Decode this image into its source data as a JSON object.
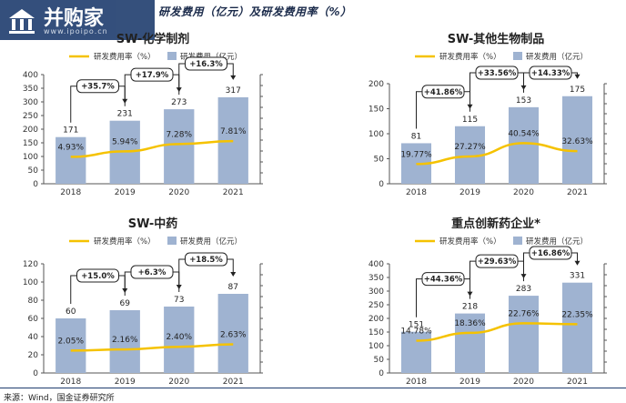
{
  "page": {
    "figure_title": "研发费用（亿元）及研发费用率（%）",
    "source": "来源：Wind，国金证券研究所",
    "watermark_name": "并购家",
    "watermark_url": "www.ipoipo.cn"
  },
  "colors": {
    "bar": "#9fb3d1",
    "bar_edge": "#7f95b8",
    "line": "#f5c200",
    "axis": "#555555"
  },
  "chart_data": [
    {
      "type": "bar",
      "title": "SW-化学制剂",
      "categories": [
        "2018",
        "2019",
        "2020",
        "2021"
      ],
      "series": [
        {
          "name": "研发费用（亿元）",
          "kind": "bar",
          "values": [
            171,
            231,
            273,
            317
          ],
          "labels": [
            "171",
            "231",
            "273",
            "317"
          ]
        },
        {
          "name": "研发费用率（%）",
          "kind": "line",
          "values": [
            4.93,
            5.94,
            7.28,
            7.81
          ],
          "labels": [
            "4.93%",
            "5.94%",
            "7.28%",
            "7.81%"
          ]
        }
      ],
      "growth": [
        "+35.7%",
        "+17.9%",
        "+16.3%"
      ],
      "ylim": [
        0,
        400
      ],
      "yticks": [
        "0",
        "50",
        "100",
        "150",
        "200",
        "250",
        "300",
        "350",
        "400"
      ],
      "y2lim": [
        0,
        20
      ]
    },
    {
      "type": "bar",
      "title": "SW-其他生物制品",
      "categories": [
        "2018",
        "2019",
        "2020",
        "2021"
      ],
      "series": [
        {
          "name": "研发费用（亿元）",
          "kind": "bar",
          "values": [
            81,
            115,
            153,
            175
          ],
          "labels": [
            "81",
            "115",
            "153",
            "175"
          ]
        },
        {
          "name": "研发费用率（%）",
          "kind": "line",
          "values": [
            19.77,
            27.27,
            40.54,
            32.63
          ],
          "labels": [
            "19.77%",
            "27.27%",
            "40.54%",
            "32.63%"
          ]
        }
      ],
      "growth": [
        "+41.86%",
        "+33.56%",
        "+14.33%"
      ],
      "ylim": [
        0,
        200
      ],
      "yticks": [
        "0",
        "50",
        "100",
        "150",
        "200"
      ],
      "y2lim": [
        0,
        100
      ]
    },
    {
      "type": "bar",
      "title": "SW-中药",
      "categories": [
        "2018",
        "2019",
        "2020",
        "2021"
      ],
      "series": [
        {
          "name": "研发费用（亿元）",
          "kind": "bar",
          "values": [
            60,
            69,
            73,
            87
          ],
          "labels": [
            "60",
            "69",
            "73",
            "87"
          ]
        },
        {
          "name": "研发费用率（%）",
          "kind": "line",
          "values": [
            2.05,
            2.16,
            2.4,
            2.63
          ],
          "labels": [
            "2.05%",
            "2.16%",
            "2.40%",
            "2.63%"
          ]
        }
      ],
      "growth": [
        "+15.0%",
        "+6.3%",
        "+18.5%"
      ],
      "ylim": [
        0,
        120
      ],
      "yticks": [
        "0",
        "20",
        "40",
        "60",
        "80",
        "100",
        "120"
      ],
      "y2lim": [
        0,
        10
      ]
    },
    {
      "type": "bar",
      "title": "重点创新药企业*",
      "categories": [
        "2018",
        "2019",
        "2020",
        "2021"
      ],
      "series": [
        {
          "name": "研发费用（亿元）",
          "kind": "bar",
          "values": [
            151,
            218,
            283,
            331
          ],
          "labels": [
            "151",
            "218",
            "283",
            "331"
          ]
        },
        {
          "name": "研发费用率（%）",
          "kind": "line",
          "values": [
            14.78,
            18.36,
            22.76,
            22.35
          ],
          "labels": [
            "14.78%",
            "18.36%",
            "22.76%",
            "22.35%"
          ]
        }
      ],
      "growth": [
        "+44.36%",
        "+29.63%",
        "+16.86%"
      ],
      "ylim": [
        0,
        400
      ],
      "yticks": [
        "0",
        "50",
        "100",
        "150",
        "200",
        "250",
        "300",
        "350",
        "400"
      ],
      "y2lim": [
        0,
        50
      ]
    }
  ]
}
